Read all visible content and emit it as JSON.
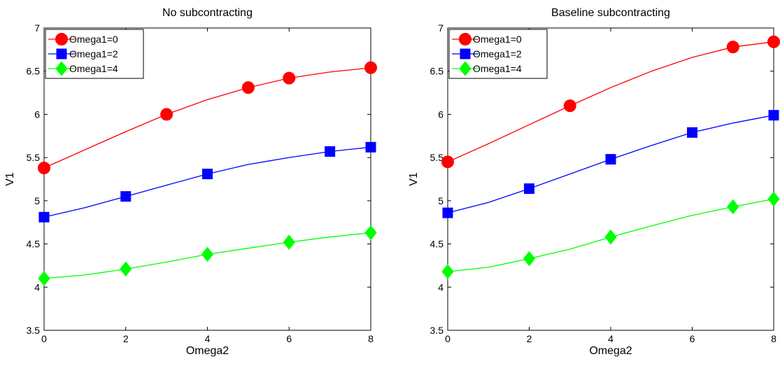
{
  "chart_data": [
    {
      "type": "line",
      "title": "No subcontracting",
      "xlabel": "Omega2",
      "ylabel": "V1",
      "xlim": [
        0,
        8
      ],
      "ylim": [
        3.5,
        7
      ],
      "xticks": [
        "0",
        "2",
        "4",
        "6",
        "8"
      ],
      "yticks": [
        "3.5",
        "4",
        "4.5",
        "5",
        "5.5",
        "6",
        "6.5",
        "7"
      ],
      "grid": false,
      "legend_position": "top-left",
      "x": [
        0,
        1,
        2,
        3,
        4,
        5,
        6,
        7,
        8
      ],
      "series": [
        {
          "name": "Omega1=0",
          "color": "#ff0000",
          "marker": "circle",
          "values": [
            5.38,
            5.59,
            5.8,
            6.0,
            6.17,
            6.31,
            6.42,
            6.49,
            6.54
          ],
          "marker_x": [
            0,
            3,
            5,
            6,
            8
          ]
        },
        {
          "name": "Omega1=2",
          "color": "#0000ff",
          "marker": "square",
          "values": [
            4.81,
            4.92,
            5.05,
            5.18,
            5.31,
            5.42,
            5.5,
            5.57,
            5.62
          ],
          "marker_x": [
            0,
            2,
            4,
            7,
            8
          ]
        },
        {
          "name": "Omega1=4",
          "color": "#00ff00",
          "marker": "diamond",
          "values": [
            4.1,
            4.14,
            4.21,
            4.29,
            4.38,
            4.45,
            4.52,
            4.58,
            4.63
          ],
          "marker_x": [
            0,
            2,
            4,
            6,
            8
          ]
        }
      ]
    },
    {
      "type": "line",
      "title": "Baseline subcontracting",
      "xlabel": "Omega2",
      "ylabel": "V1",
      "xlim": [
        0,
        8
      ],
      "ylim": [
        3.5,
        7
      ],
      "xticks": [
        "0",
        "2",
        "4",
        "6",
        "8"
      ],
      "yticks": [
        "3.5",
        "4",
        "4.5",
        "5",
        "5.5",
        "6",
        "6.5",
        "7"
      ],
      "grid": false,
      "legend_position": "top-left",
      "x": [
        0,
        1,
        2,
        3,
        4,
        5,
        6,
        7,
        8
      ],
      "series": [
        {
          "name": "Omega1=0",
          "color": "#ff0000",
          "marker": "circle",
          "values": [
            5.45,
            5.66,
            5.88,
            6.1,
            6.31,
            6.5,
            6.66,
            6.78,
            6.84
          ],
          "marker_x": [
            0,
            3,
            7,
            8
          ]
        },
        {
          "name": "Omega1=2",
          "color": "#0000ff",
          "marker": "square",
          "values": [
            4.86,
            4.98,
            5.14,
            5.31,
            5.48,
            5.64,
            5.79,
            5.9,
            5.99
          ],
          "marker_x": [
            0,
            2,
            4,
            6,
            8
          ]
        },
        {
          "name": "Omega1=4",
          "color": "#00ff00",
          "marker": "diamond",
          "values": [
            4.18,
            4.23,
            4.33,
            4.44,
            4.58,
            4.71,
            4.83,
            4.93,
            5.02
          ],
          "marker_x": [
            0,
            2,
            4,
            7,
            8
          ]
        }
      ]
    }
  ]
}
